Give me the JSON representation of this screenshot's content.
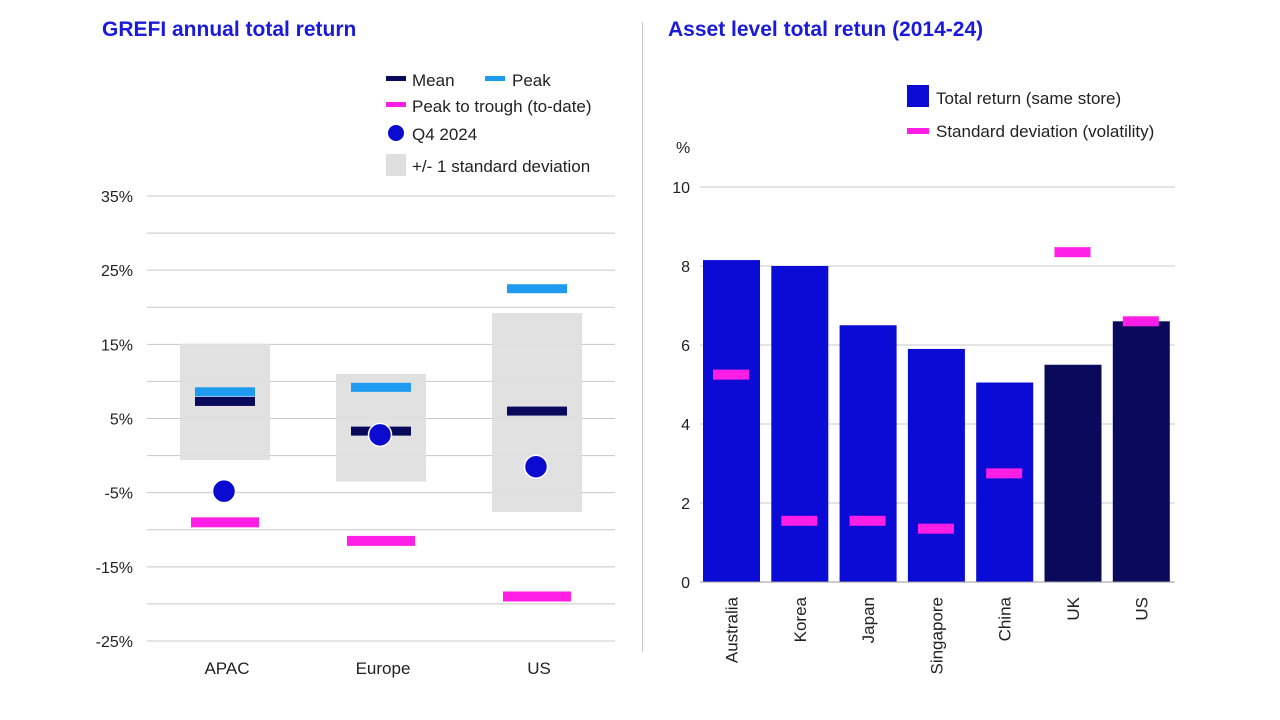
{
  "chart_data": [
    {
      "type": "range",
      "title": "GREFI annual total return",
      "categories": [
        "APAC",
        "Europe",
        "US"
      ],
      "y_ticks": [
        "35%",
        "25%",
        "15%",
        "5%",
        "-5%",
        "-15%",
        "-25%"
      ],
      "ylim": [
        -25,
        35
      ],
      "series": {
        "mean": [
          7.3,
          3.3,
          6.0
        ],
        "peak": [
          8.6,
          9.2,
          22.5
        ],
        "peak_to_trough": [
          -9.0,
          -11.5,
          -19.0
        ],
        "q4_2024": [
          -4.8,
          2.8,
          -1.5
        ],
        "std_low": [
          -0.6,
          -3.5,
          -7.6
        ],
        "std_high": [
          15.1,
          11.0,
          19.2
        ]
      },
      "legend": {
        "mean": "Mean",
        "peak": "Peak",
        "peak_to_trough": "Peak to trough (to-date)",
        "q4": "Q4 2024",
        "std": "+/- 1 standard deviation"
      }
    },
    {
      "type": "bar",
      "title": "Asset level total retun (2014-24)",
      "ylabel": "%",
      "categories": [
        "Australia",
        "Korea",
        "Japan",
        "Singapore",
        "China",
        "UK",
        "US"
      ],
      "y_ticks": [
        "10",
        "8",
        "6",
        "4",
        "2",
        "0"
      ],
      "ylim": [
        0,
        10
      ],
      "values": [
        8.15,
        8.0,
        6.5,
        5.9,
        5.05,
        5.5,
        6.6
      ],
      "std_dev": [
        5.25,
        1.55,
        1.55,
        1.35,
        2.75,
        8.35,
        6.6
      ],
      "highlight": [
        false,
        false,
        false,
        false,
        false,
        true,
        true
      ],
      "legend": {
        "total_return": "Total return (same store)",
        "std_dev": "Standard deviation (volatility)"
      }
    }
  ],
  "colors": {
    "title": "#1a1adb",
    "bar": "#0b0bd6",
    "bar_dark": "#0a0a5c",
    "mean": "#0a0a5c",
    "peak": "#1e9bf0",
    "trough": "#ff1ee6",
    "q4": "#0a0ad0",
    "std_box": "#dedede",
    "grid": "#c8c8c8"
  }
}
